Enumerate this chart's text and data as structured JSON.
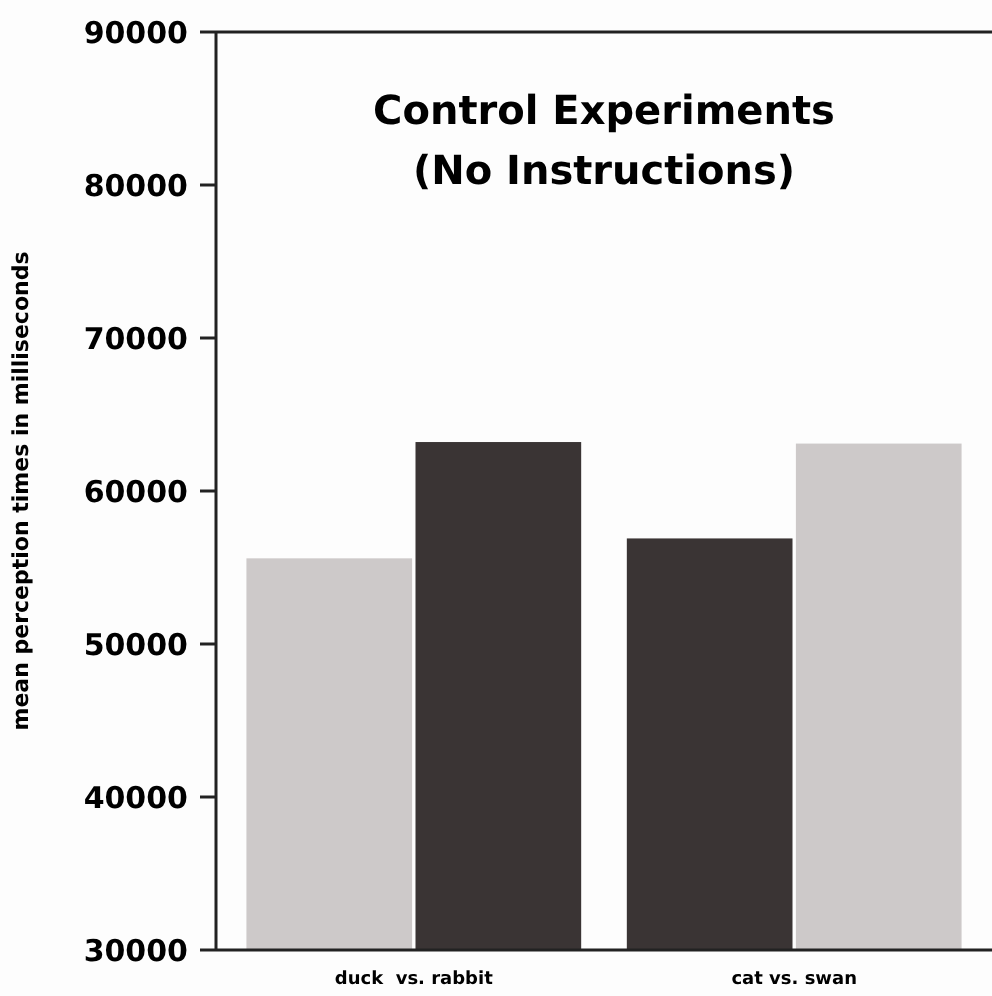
{
  "chart_data": {
    "type": "bar",
    "title": "Control Experiments\n(No Instructions)",
    "ylabel": "mean perception times in milliseconds",
    "categories": [
      "duck  vs. rabbit",
      "cat vs. swan"
    ],
    "series": [
      {
        "colors": [
          "#cdc9c9",
          "#3a3434"
        ],
        "values": [
          55600,
          56900
        ]
      },
      {
        "colors": [
          "#3a3434",
          "#cdc9c9"
        ],
        "values": [
          63200,
          63100
        ]
      }
    ],
    "ylim": [
      30000,
      90000
    ],
    "yticks": [
      30000,
      40000,
      50000,
      60000,
      70000,
      80000,
      90000
    ],
    "grid": false
  }
}
